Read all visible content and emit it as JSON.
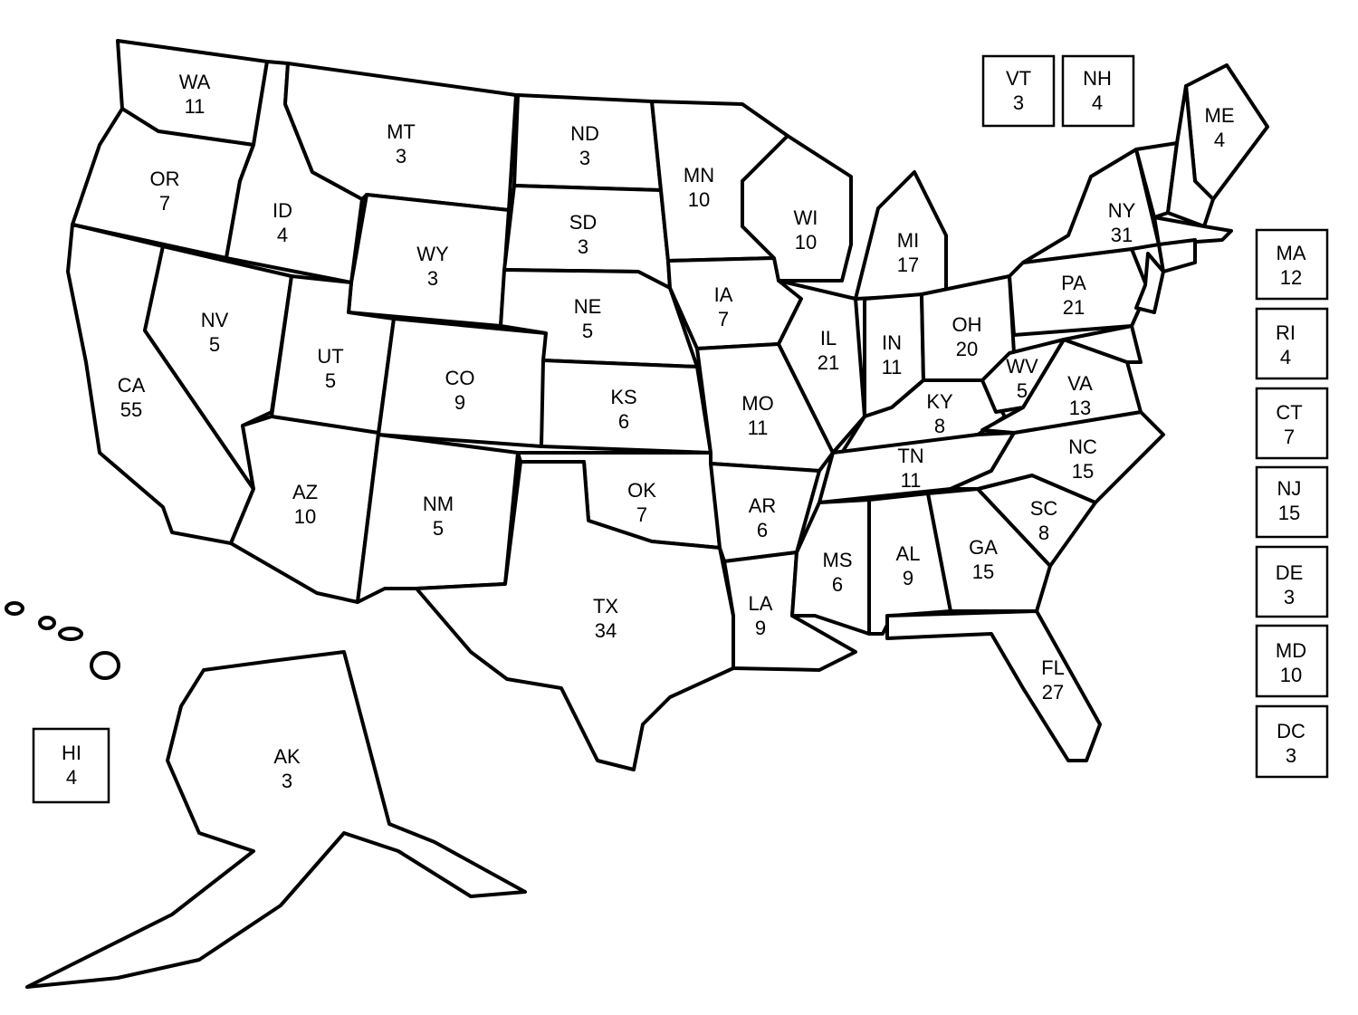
{
  "states": [
    {
      "abbr": "WA",
      "votes": 11
    },
    {
      "abbr": "OR",
      "votes": 7
    },
    {
      "abbr": "CA",
      "votes": 55
    },
    {
      "abbr": "NV",
      "votes": 5
    },
    {
      "abbr": "ID",
      "votes": 4
    },
    {
      "abbr": "MT",
      "votes": 3
    },
    {
      "abbr": "WY",
      "votes": 3
    },
    {
      "abbr": "UT",
      "votes": 5
    },
    {
      "abbr": "AZ",
      "votes": 10
    },
    {
      "abbr": "CO",
      "votes": 9
    },
    {
      "abbr": "NM",
      "votes": 5
    },
    {
      "abbr": "ND",
      "votes": 3
    },
    {
      "abbr": "SD",
      "votes": 3
    },
    {
      "abbr": "NE",
      "votes": 5
    },
    {
      "abbr": "KS",
      "votes": 6
    },
    {
      "abbr": "OK",
      "votes": 7
    },
    {
      "abbr": "TX",
      "votes": 34
    },
    {
      "abbr": "MN",
      "votes": 10
    },
    {
      "abbr": "IA",
      "votes": 7
    },
    {
      "abbr": "MO",
      "votes": 11
    },
    {
      "abbr": "AR",
      "votes": 6
    },
    {
      "abbr": "LA",
      "votes": 9
    },
    {
      "abbr": "WI",
      "votes": 10
    },
    {
      "abbr": "IL",
      "votes": 21
    },
    {
      "abbr": "MI",
      "votes": 17
    },
    {
      "abbr": "IN",
      "votes": 11
    },
    {
      "abbr": "OH",
      "votes": 20
    },
    {
      "abbr": "KY",
      "votes": 8
    },
    {
      "abbr": "TN",
      "votes": 11
    },
    {
      "abbr": "MS",
      "votes": 6
    },
    {
      "abbr": "AL",
      "votes": 9
    },
    {
      "abbr": "GA",
      "votes": 15
    },
    {
      "abbr": "FL",
      "votes": 27
    },
    {
      "abbr": "SC",
      "votes": 8
    },
    {
      "abbr": "NC",
      "votes": 15
    },
    {
      "abbr": "VA",
      "votes": 13
    },
    {
      "abbr": "WV",
      "votes": 5
    },
    {
      "abbr": "PA",
      "votes": 21
    },
    {
      "abbr": "NY",
      "votes": 31
    },
    {
      "abbr": "ME",
      "votes": 4
    },
    {
      "abbr": "AK",
      "votes": 3
    },
    {
      "abbr": "VT",
      "votes": 3
    },
    {
      "abbr": "NH",
      "votes": 4
    },
    {
      "abbr": "MA",
      "votes": 12
    },
    {
      "abbr": "RI",
      "votes": 4
    },
    {
      "abbr": "CT",
      "votes": 7
    },
    {
      "abbr": "NJ",
      "votes": 15
    },
    {
      "abbr": "DE",
      "votes": 3
    },
    {
      "abbr": "MD",
      "votes": 10
    },
    {
      "abbr": "DC",
      "votes": 3
    },
    {
      "abbr": "HI",
      "votes": 4
    }
  ]
}
